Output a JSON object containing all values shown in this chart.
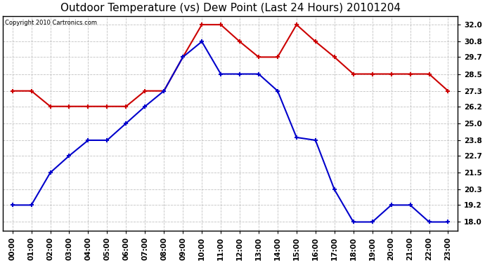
{
  "title": "Outdoor Temperature (vs) Dew Point (Last 24 Hours) 20101204",
  "copyright": "Copyright 2010 Cartronics.com",
  "x_labels": [
    "00:00",
    "01:00",
    "02:00",
    "03:00",
    "04:00",
    "05:00",
    "06:00",
    "07:00",
    "08:00",
    "09:00",
    "10:00",
    "11:00",
    "12:00",
    "13:00",
    "14:00",
    "15:00",
    "16:00",
    "17:00",
    "18:00",
    "19:00",
    "20:00",
    "21:00",
    "22:00",
    "23:00"
  ],
  "temp_data": [
    19.2,
    19.2,
    21.5,
    22.7,
    23.8,
    23.8,
    25.0,
    26.2,
    27.3,
    29.7,
    30.8,
    28.5,
    28.5,
    28.5,
    27.3,
    24.0,
    23.8,
    20.3,
    18.0,
    18.0,
    19.2,
    19.2,
    18.0,
    18.0
  ],
  "dew_data": [
    27.3,
    27.3,
    26.2,
    26.2,
    26.2,
    26.2,
    26.2,
    27.3,
    27.3,
    29.7,
    32.0,
    32.0,
    30.8,
    29.7,
    29.7,
    32.0,
    30.8,
    29.7,
    28.5,
    28.5,
    28.5,
    28.5,
    28.5,
    27.3
  ],
  "temp_color": "#0000CC",
  "dew_color": "#CC0000",
  "y_ticks": [
    18.0,
    19.2,
    20.3,
    21.5,
    22.7,
    23.8,
    25.0,
    26.2,
    27.3,
    28.5,
    29.7,
    30.8,
    32.0
  ],
  "y_min": 17.4,
  "y_max": 32.6,
  "bg_color": "#FFFFFF",
  "grid_color": "#BBBBBB",
  "title_fontsize": 11,
  "copyright_fontsize": 6,
  "tick_fontsize": 7.5
}
